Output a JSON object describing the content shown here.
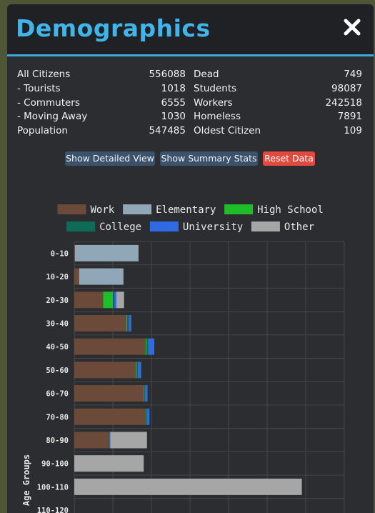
{
  "window": {
    "title": "Demographics"
  },
  "stats": {
    "left": [
      {
        "label": "All Citizens",
        "value": "556088"
      },
      {
        "label": "- Tourists",
        "value": "1018"
      },
      {
        "label": "- Commuters",
        "value": "6555"
      },
      {
        "label": "- Moving Away",
        "value": "1030"
      },
      {
        "label": "Population",
        "value": "547485"
      }
    ],
    "right": [
      {
        "label": "Dead",
        "value": "749"
      },
      {
        "label": "Students",
        "value": "98087"
      },
      {
        "label": "Workers",
        "value": "242518"
      },
      {
        "label": "Homeless",
        "value": "7891"
      },
      {
        "label": "Oldest Citizen",
        "value": "109"
      }
    ]
  },
  "buttons": {
    "detailed": "Show Detailed View",
    "summary": "Show Summary Stats",
    "reset": "Reset Data"
  },
  "colors": {
    "accent": "#3fb5ea",
    "work": "#6b4a3a",
    "elementary": "#8fa7b6",
    "highschool": "#1fbd28",
    "college": "#0e6b57",
    "university": "#2f69e4",
    "other": "#a6a6a6"
  },
  "chart_data": {
    "type": "bar",
    "orientation": "horizontal",
    "stacked": true,
    "ylabel": "Age Groups",
    "xlabel": "",
    "legend_position": "top",
    "grid": true,
    "categories": [
      "0-10",
      "10-20",
      "20-30",
      "30-40",
      "40-50",
      "50-60",
      "60-70",
      "70-80",
      "80-90",
      "90-100",
      "100-110",
      "110-120"
    ],
    "series": [
      {
        "name": "Work",
        "color": "#6b4a3a",
        "values": [
          0.3,
          2.5,
          15,
          27,
          37,
          32,
          36,
          37,
          18,
          0,
          0,
          0
        ]
      },
      {
        "name": "Elementary",
        "color": "#8fa7b6",
        "values": [
          33,
          23,
          0,
          0,
          0,
          0,
          0,
          0,
          0,
          0,
          0,
          0
        ]
      },
      {
        "name": "High School",
        "color": "#1fbd28",
        "values": [
          0,
          0,
          5,
          0.5,
          0.5,
          0.4,
          0.3,
          0.3,
          0,
          0,
          0,
          0
        ]
      },
      {
        "name": "College",
        "color": "#0e6b57",
        "values": [
          0,
          0,
          0.8,
          0.8,
          0.7,
          0.5,
          0.4,
          0.4,
          0.2,
          0,
          0,
          0
        ]
      },
      {
        "name": "University",
        "color": "#2f69e4",
        "values": [
          0,
          0,
          1,
          1.3,
          3.3,
          1.8,
          1.3,
          1.3,
          0.5,
          0,
          0,
          0
        ]
      },
      {
        "name": "Other",
        "color": "#a6a6a6",
        "values": [
          0,
          0,
          4,
          0,
          0,
          0,
          0,
          0,
          19,
          36,
          118,
          0
        ]
      }
    ],
    "xlim": [
      0,
      140
    ]
  }
}
